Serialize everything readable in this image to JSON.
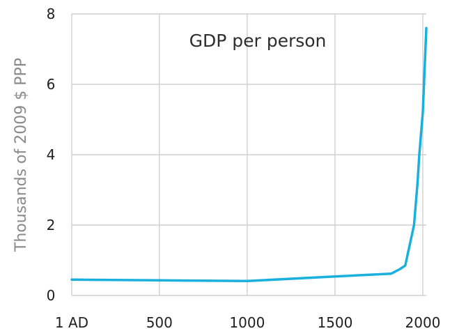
{
  "chart_data": {
    "type": "line",
    "title": "GDP per person",
    "xlabel": "",
    "ylabel": "Thousands of 2009 $ PPP",
    "xlim": [
      1,
      2020
    ],
    "ylim": [
      0,
      8
    ],
    "x_ticks": [
      {
        "value": 1,
        "label": "1 AD"
      },
      {
        "value": 500,
        "label": "500"
      },
      {
        "value": 1000,
        "label": "1000"
      },
      {
        "value": 1500,
        "label": "1500"
      },
      {
        "value": 2000,
        "label": "2000"
      }
    ],
    "y_ticks": [
      {
        "value": 0,
        "label": "0"
      },
      {
        "value": 2,
        "label": "2"
      },
      {
        "value": 4,
        "label": "4"
      },
      {
        "value": 6,
        "label": "6"
      },
      {
        "value": 8,
        "label": "8"
      }
    ],
    "grid": true,
    "line_color": "#19b0de",
    "series": [
      {
        "x": [
          1,
          500,
          1000,
          1500,
          1820,
          1870,
          1900,
          1950,
          1970,
          1980,
          1990,
          2000,
          2010,
          2015,
          2020
        ],
        "values": [
          0.45,
          0.43,
          0.41,
          0.54,
          0.62,
          0.75,
          0.85,
          2.0,
          3.2,
          4.0,
          4.6,
          5.2,
          6.4,
          7.0,
          7.6
        ]
      }
    ]
  }
}
